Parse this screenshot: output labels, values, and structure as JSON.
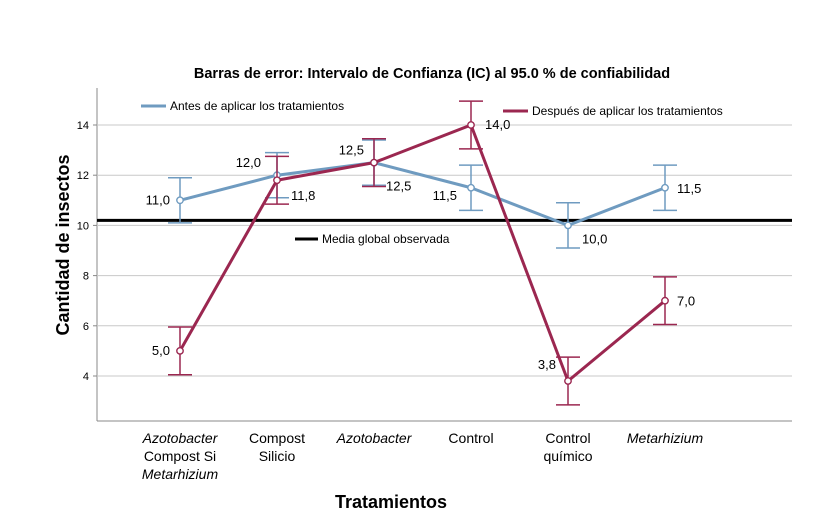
{
  "chart_data": {
    "type": "line",
    "title": "Barras de error: Intervalo de Confianza (IC) al 95.0 % de confiabilidad",
    "xlabel": "Tratamientos",
    "ylabel": "Cantidad de insectos",
    "ylim": [
      2.0,
      15.5
    ],
    "yticks": [
      4,
      6,
      8,
      10,
      12,
      14
    ],
    "grid": true,
    "categories": [
      {
        "lines": [
          "Azotobacter",
          "Compost Si",
          "Metarhizium"
        ],
        "italic": [
          true,
          false,
          true
        ]
      },
      {
        "lines": [
          "Compost",
          "Silicio"
        ],
        "italic": [
          false,
          false
        ]
      },
      {
        "lines": [
          "Azotobacter"
        ],
        "italic": [
          true
        ]
      },
      {
        "lines": [
          "Control"
        ],
        "italic": [
          false
        ]
      },
      {
        "lines": [
          "Control",
          "químico"
        ],
        "italic": [
          false,
          false
        ]
      },
      {
        "lines": [
          "Metarhizium"
        ],
        "italic": [
          true
        ]
      }
    ],
    "series": [
      {
        "name": "Antes de aplicar los tratamientos",
        "color": "#6f9bc0",
        "values": [
          11.0,
          12.0,
          12.5,
          11.5,
          10.0,
          11.5
        ],
        "ci_low": [
          10.1,
          11.1,
          11.6,
          10.6,
          9.1,
          10.6
        ],
        "ci_high": [
          11.9,
          12.9,
          13.4,
          12.4,
          10.9,
          12.4
        ],
        "labels": [
          "11,0",
          "12,0",
          "12,5",
          "11,5",
          "10,0",
          "11,5"
        ]
      },
      {
        "name": "Después de aplicar los tratamientos",
        "color": "#9b2750",
        "values": [
          5.0,
          11.8,
          12.5,
          14.0,
          3.8,
          7.0
        ],
        "ci_low": [
          4.05,
          10.85,
          11.55,
          13.05,
          2.85,
          6.05
        ],
        "ci_high": [
          5.95,
          12.75,
          13.45,
          14.95,
          4.75,
          7.95
        ],
        "labels": [
          "5,0",
          "11,8",
          "12,5",
          "14,0",
          "3,8",
          "7,0"
        ]
      }
    ],
    "reference_line": {
      "name": "Media global observada",
      "value": 10.2,
      "color": "#000000"
    }
  }
}
